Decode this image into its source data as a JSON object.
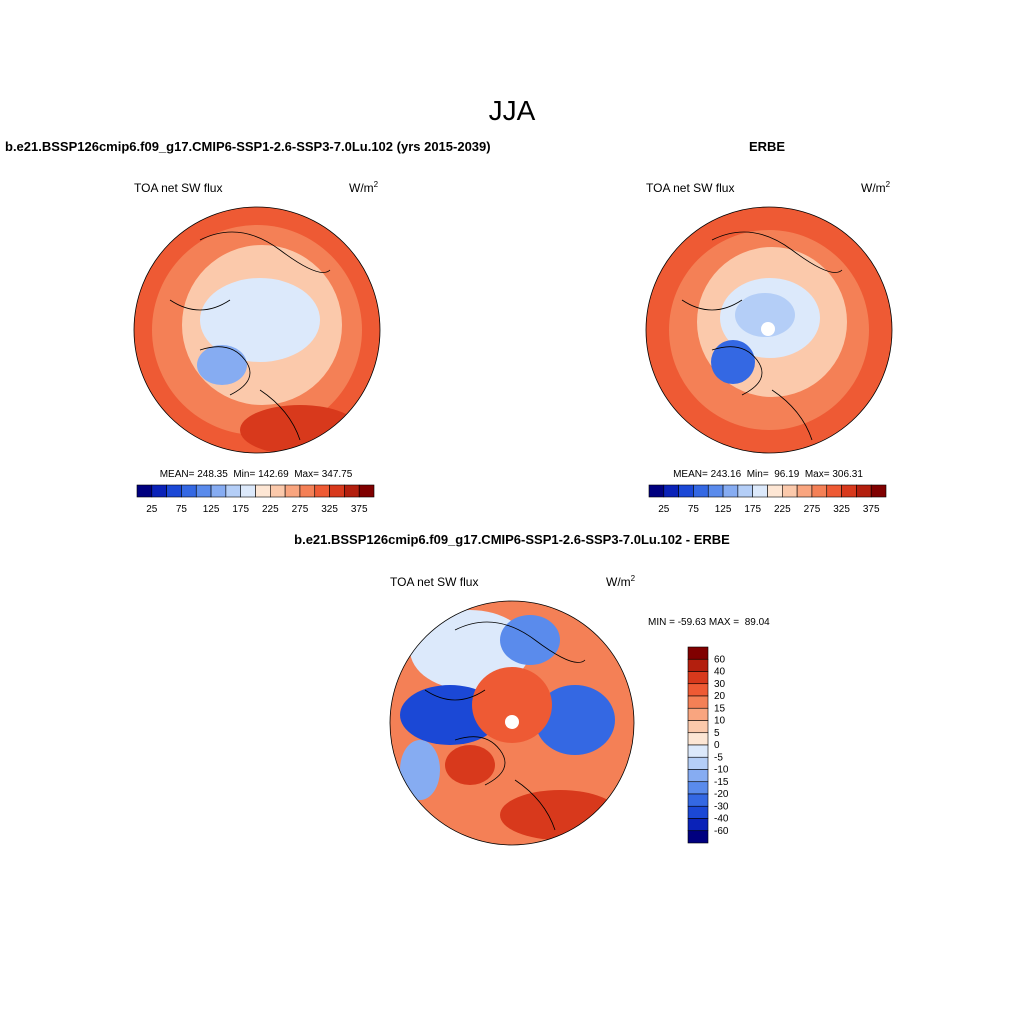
{
  "title": "JJA",
  "panels": [
    {
      "title": "b.e21.BSSP126cmip6.f09_g17.CMIP6-SSP1-2.6-SSP3-7.0Lu.102 (yrs 2015-2039)",
      "variable": "TOA net SW flux",
      "units": {
        "base": "W/m",
        "sup": "2"
      },
      "stats": "MEAN= 248.35  Min= 142.69  Max= 347.75",
      "colorbar": {
        "colors": [
          "#00007f",
          "#0a22b8",
          "#1b48d6",
          "#3468e3",
          "#5a8bec",
          "#86acf2",
          "#b4cef7",
          "#dce9fb",
          "#fde6d4",
          "#fbc9ab",
          "#f9a57f",
          "#f48056",
          "#ee5a34",
          "#d8391c",
          "#b31f0e",
          "#800000"
        ],
        "labels": [
          25,
          75,
          125,
          175,
          225,
          275,
          325,
          375
        ]
      }
    },
    {
      "title": "ERBE",
      "variable": "TOA net SW flux",
      "units": {
        "base": "W/m",
        "sup": "2"
      },
      "stats": "MEAN= 243.16  Min=  96.19  Max= 306.31",
      "colorbar": {
        "colors": [
          "#00007f",
          "#0a22b8",
          "#1b48d6",
          "#3468e3",
          "#5a8bec",
          "#86acf2",
          "#b4cef7",
          "#dce9fb",
          "#fde6d4",
          "#fbc9ab",
          "#f9a57f",
          "#f48056",
          "#ee5a34",
          "#d8391c",
          "#b31f0e",
          "#800000"
        ],
        "labels": [
          25,
          75,
          125,
          175,
          225,
          275,
          325,
          375
        ]
      }
    },
    {
      "title": "b.e21.BSSP126cmip6.f09_g17.CMIP6-SSP1-2.6-SSP3-7.0Lu.102 - ERBE",
      "variable": "TOA net SW flux",
      "units": {
        "base": "W/m",
        "sup": "2"
      },
      "stats": "MIN = -59.63 MAX =  89.04",
      "colorbar": {
        "colors": [
          "#800000",
          "#b31f0e",
          "#d8391c",
          "#ee5a34",
          "#f48056",
          "#f9a57f",
          "#fbc9ab",
          "#fde6d4",
          "#dce9fb",
          "#b4cef7",
          "#86acf2",
          "#5a8bec",
          "#3468e3",
          "#1b48d6",
          "#0a22b8",
          "#00007f"
        ],
        "labels": [
          60,
          40,
          30,
          20,
          15,
          10,
          5,
          0,
          -5,
          -10,
          -15,
          -20,
          -30,
          -40,
          -60
        ]
      }
    }
  ]
}
